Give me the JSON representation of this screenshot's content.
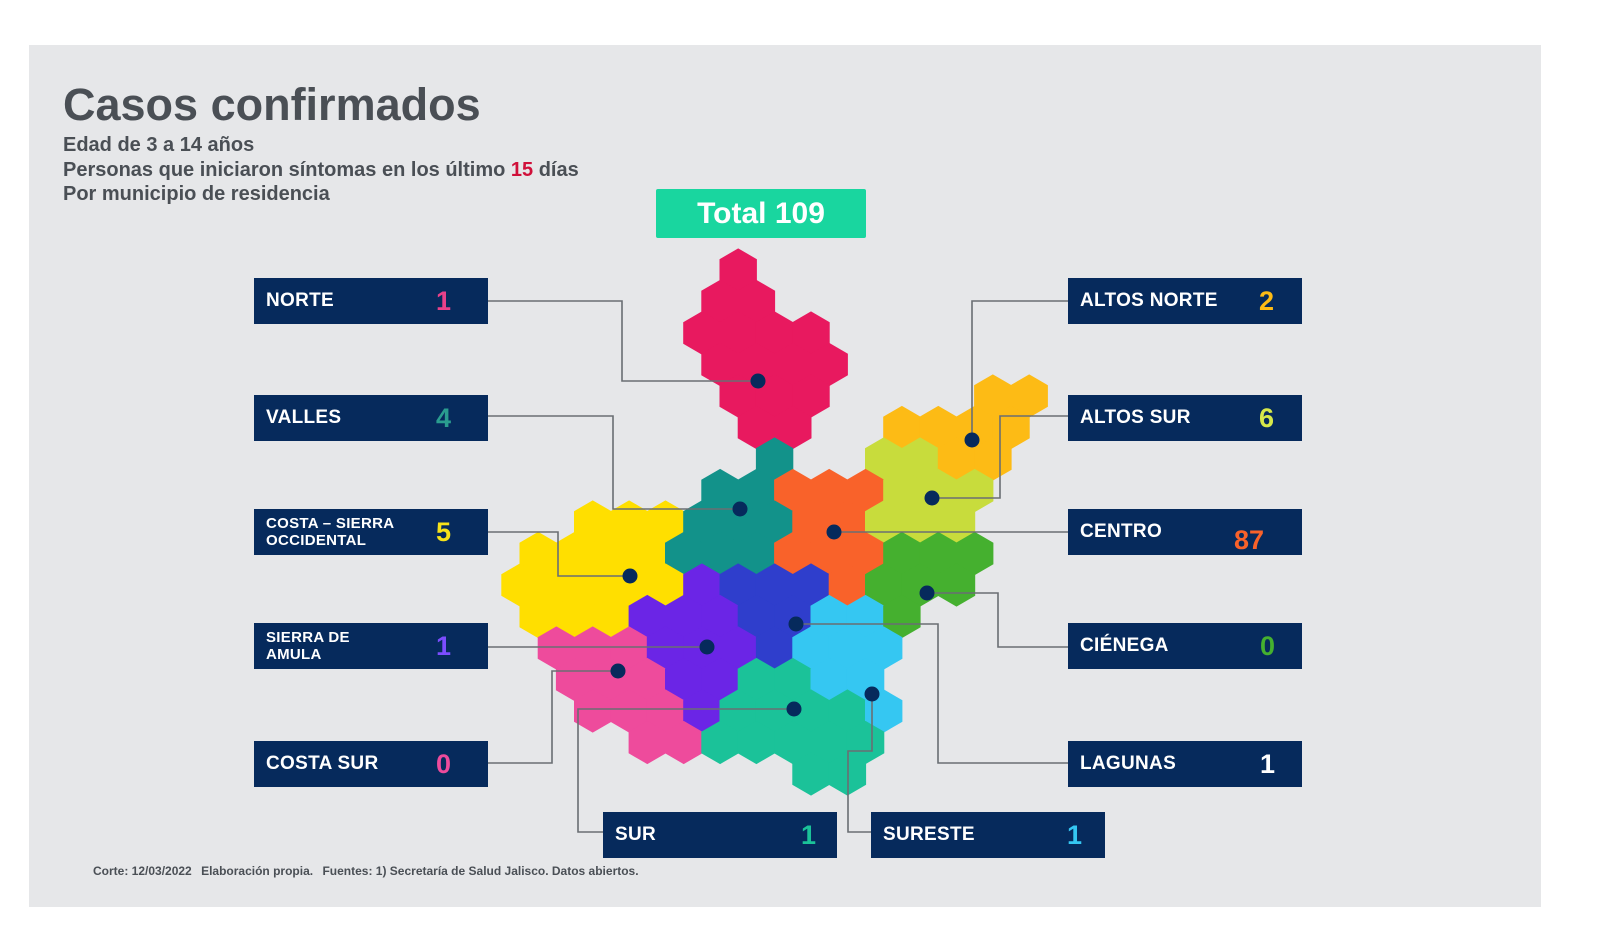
{
  "title": "Casos confirmados",
  "subtitle_lines": {
    "line1": "Edad de 3 a 14 años",
    "line2_before": "Personas que iniciaron síntomas en los último ",
    "line2_days": "15",
    "line2_after": " días",
    "line3": "Por municipio de residencia"
  },
  "total_label": "Total 109",
  "regions": [
    {
      "name": "NORTE",
      "value": "1",
      "color": "#e8195f"
    },
    {
      "name": "VALLES",
      "value": "4",
      "color": "#12928a"
    },
    {
      "name": "COSTA – SIERRA OCCIDENTAL",
      "value": "5",
      "color": "#ffdf00"
    },
    {
      "name": "SIERRA DE AMULA",
      "value": "1",
      "color": "#6b25e6"
    },
    {
      "name": "COSTA SUR",
      "value": "0",
      "color": "#ee4b9c"
    },
    {
      "name": "SUR",
      "value": "1",
      "color": "#1bc299"
    },
    {
      "name": "SURESTE",
      "value": "1",
      "color": "#35c7f2"
    },
    {
      "name": "ALTOS NORTE",
      "value": "2",
      "color": "#fdbb15"
    },
    {
      "name": "ALTOS SUR",
      "value": "6",
      "color": "#c8dc3c"
    },
    {
      "name": "CENTRO",
      "value": "87",
      "color": "#f9622a"
    },
    {
      "name": "CIÉNEGA",
      "value": "0",
      "color": "#45b02f"
    },
    {
      "name": "LAGUNAS",
      "value": "1",
      "color": "#2f3ecc"
    }
  ],
  "footer": {
    "corte": "Corte: 12/03/2022",
    "elaboracion": "Elaboración propia.",
    "fuentes": "Fuentes:  1) Secretaría de Salud Jalisco.  Datos abiertos."
  },
  "colors": {
    "panel": "#e6e7e9",
    "box": "#062a5c",
    "total": "#19d69f",
    "connector": "#6a6e73",
    "dot": "#062a5c",
    "number_colors": {
      "NORTE": "#e8418a",
      "VALLES": "#2a9d8f",
      "COSTA – SIERRA OCCIDENTAL": "#f6e21a",
      "SIERRA DE AMULA": "#7c4dff",
      "COSTA SUR": "#ee4b9c",
      "SUR": "#1bc299",
      "SURESTE": "#35c7f2",
      "ALTOS NORTE": "#fdbb15",
      "ALTOS SUR": "#d6e84a",
      "CENTRO": "#f9622a",
      "CIÉNEGA": "#45b02f",
      "LAGUNAS": "#ffffff"
    }
  }
}
